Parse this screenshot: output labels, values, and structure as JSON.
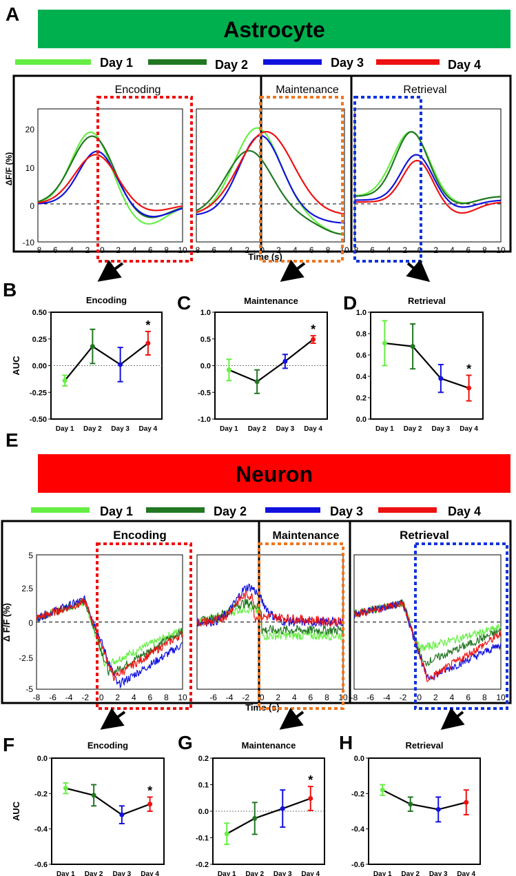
{
  "colors": {
    "day1": "#66ee44",
    "day2": "#227722",
    "day3": "#1111dd",
    "day4": "#ee1111",
    "astro": "#00b04f",
    "neuron": "#ff0000",
    "encode": "#ee1111",
    "maint": "#ee7722",
    "retr": "#1133dd"
  },
  "astro": {
    "letter": "A",
    "banner": "Astrocyte",
    "legend": [
      "Day 1",
      "Day 2",
      "Day 3",
      "Day 4"
    ],
    "xlabel": "Time (s)",
    "ylabel": "ΔF/F (%)",
    "windows": [
      "Encoding",
      "Maintenance",
      "Retrieval"
    ],
    "yticks": [
      "20",
      "10",
      "0",
      "-10"
    ],
    "xticks": [
      "-8",
      "-6",
      "-4",
      "-2",
      "0",
      "2",
      "4",
      "6",
      "8",
      "10"
    ],
    "xticks_mid": [
      "-6",
      "-4",
      "-2",
      "0",
      "2",
      "4",
      "6",
      "8",
      "10"
    ]
  },
  "neuron": {
    "letter": "E",
    "banner": "Neuron",
    "legend": [
      "Day 1",
      "Day 2",
      "Day 3",
      "Day 4"
    ],
    "xlabel": "Time (s)",
    "ylabel": "Δ F/F (%)",
    "windows": [
      "Encoding",
      "Maintenance",
      "Retrieval"
    ],
    "yticks": [
      "5",
      "2.5",
      "0",
      "-2.5",
      "-5"
    ],
    "xticks": [
      "-8",
      "-6",
      "-4",
      "-2",
      "0",
      "2",
      "4",
      "6",
      "8",
      "10"
    ],
    "xticks_mid": [
      "-6",
      "-4",
      "-2",
      "0",
      "2",
      "4",
      "6",
      "8",
      "10"
    ]
  },
  "chart_data": [
    {
      "id": "B",
      "type": "line",
      "title": "Encoding",
      "ylabel": "AUC",
      "categories": [
        "Day 1",
        "Day 2",
        "Day 3",
        "Day 4"
      ],
      "values": [
        -0.14,
        0.18,
        0.01,
        0.21
      ],
      "errors": [
        0.05,
        0.16,
        0.16,
        0.11
      ],
      "ylim": [
        -0.5,
        0.5
      ],
      "yticks": [
        "0.50",
        "0.25",
        "0.00",
        "-0.25",
        "-0.50"
      ],
      "star": "*"
    },
    {
      "id": "C",
      "type": "line",
      "title": "Maintenance",
      "ylabel": "",
      "categories": [
        "Day 1",
        "Day 2",
        "Day 3",
        "Day 4"
      ],
      "values": [
        -0.08,
        -0.3,
        0.08,
        0.49
      ],
      "errors": [
        0.2,
        0.22,
        0.13,
        0.07
      ],
      "ylim": [
        -1.0,
        1.0
      ],
      "yticks": [
        "1.0",
        "0.5",
        "0.0",
        "-0.5",
        "-1.0"
      ],
      "star": "*"
    },
    {
      "id": "D",
      "type": "line",
      "title": "Retrieval",
      "ylabel": "",
      "categories": [
        "Day 1",
        "Day 2",
        "Day 3",
        "Day 4"
      ],
      "values": [
        0.71,
        0.68,
        0.38,
        0.29
      ],
      "errors": [
        0.21,
        0.21,
        0.13,
        0.12
      ],
      "ylim": [
        0.0,
        1.0
      ],
      "yticks": [
        "1.0",
        "0.8",
        "0.6",
        "0.4",
        "0.2",
        "0.0"
      ],
      "star": "*"
    },
    {
      "id": "F",
      "type": "line",
      "title": "Encoding",
      "ylabel": "AUC",
      "categories": [
        "Day 1",
        "Day 2",
        "Day 3",
        "Day 4"
      ],
      "values": [
        -0.17,
        -0.21,
        -0.32,
        -0.26
      ],
      "errors": [
        0.03,
        0.06,
        0.05,
        0.04
      ],
      "ylim": [
        -0.6,
        0.0
      ],
      "yticks": [
        "0.0",
        "-0.2",
        "-0.4",
        "-0.6"
      ],
      "star": "*"
    },
    {
      "id": "G",
      "type": "line",
      "title": "Maintenance",
      "ylabel": "",
      "categories": [
        "Day 1",
        "Day 2",
        "Day 3",
        "Day 4"
      ],
      "values": [
        -0.085,
        -0.027,
        0.01,
        0.048
      ],
      "errors": [
        0.04,
        0.06,
        0.07,
        0.045
      ],
      "ylim": [
        -0.2,
        0.2
      ],
      "yticks": [
        "0.2",
        "0.1",
        "0.0",
        "-0.1",
        "-0.2"
      ],
      "star": "*"
    },
    {
      "id": "H",
      "type": "line",
      "title": "Retrieval",
      "ylabel": "",
      "categories": [
        "Day 1",
        "Day 2",
        "Day 3",
        "Day 4"
      ],
      "values": [
        -0.18,
        -0.26,
        -0.29,
        -0.25
      ],
      "errors": [
        0.03,
        0.04,
        0.07,
        0.07
      ],
      "ylim": [
        -0.6,
        0.0
      ],
      "yticks": [
        "0.0",
        "-0.2",
        "-0.4",
        "-0.6"
      ],
      "star": ""
    }
  ]
}
